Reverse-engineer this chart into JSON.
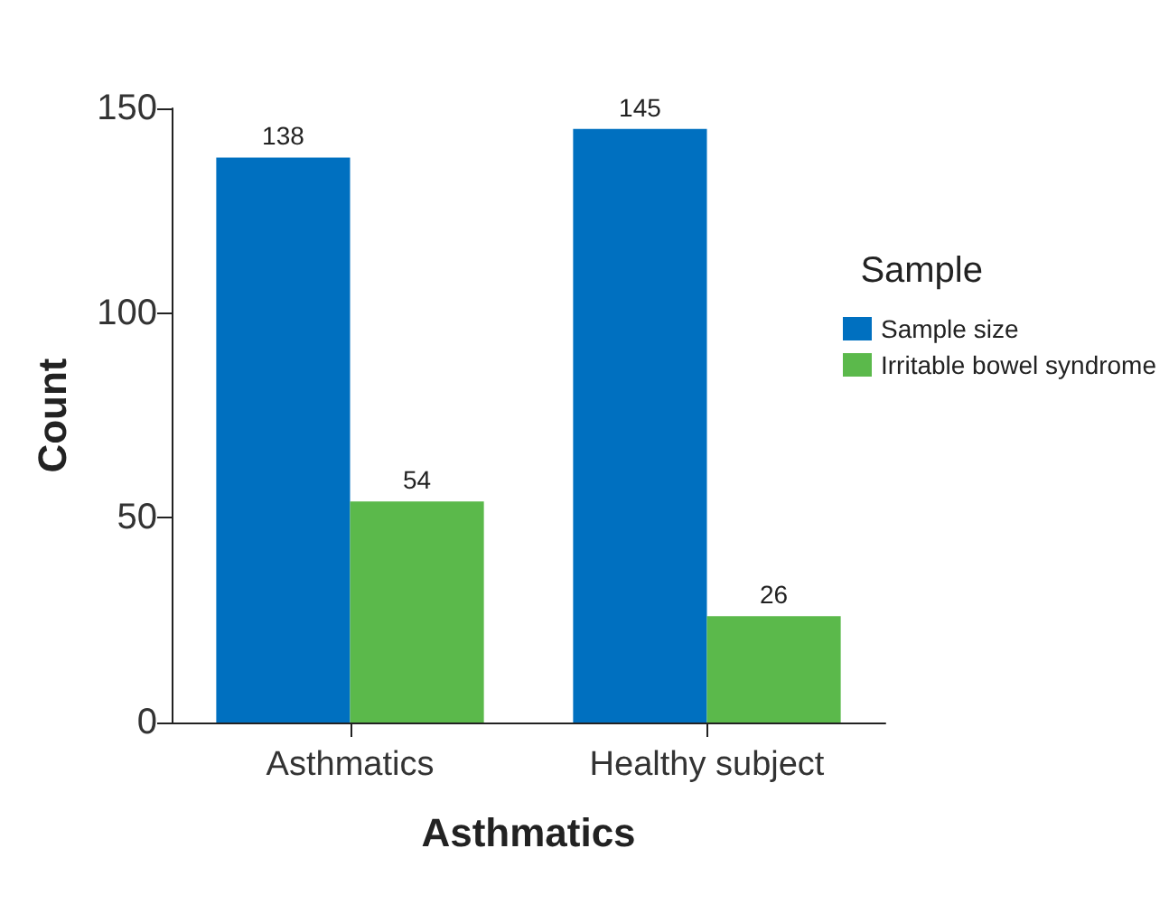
{
  "chart_data": {
    "type": "bar",
    "xlabel": "Asthmatics",
    "ylabel": "Count",
    "legend_title": "Sample",
    "categories": [
      "Asthmatics",
      "Healthy subject"
    ],
    "series": [
      {
        "name": "Sample size",
        "color": "#0070c0",
        "values": [
          138,
          145
        ]
      },
      {
        "name": "Irritable bowel syndrome",
        "color": "#5bb94b",
        "values": [
          54,
          26
        ]
      }
    ],
    "ylim": [
      0,
      150
    ],
    "yticks": [
      0,
      50,
      100,
      150
    ],
    "grid": false,
    "legend": "right",
    "data_labels": true
  }
}
